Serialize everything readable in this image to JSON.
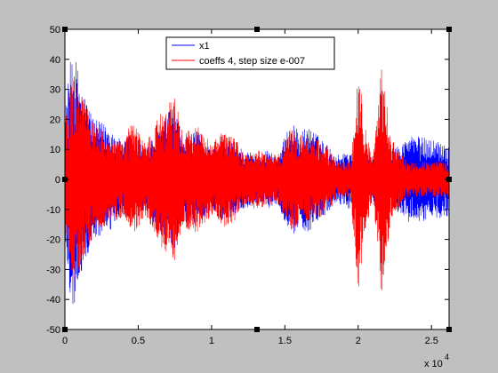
{
  "chart_data": {
    "type": "line",
    "title": "",
    "xlabel": "",
    "ylabel": "",
    "x_multiplier_label": "x 10",
    "x_multiplier_exponent": "4",
    "xlim": [
      0,
      26200
    ],
    "ylim": [
      -50,
      50
    ],
    "xticks": [
      0,
      5000,
      10000,
      15000,
      20000,
      25000
    ],
    "xtick_labels": [
      "0",
      "0.5",
      "1",
      "1.5",
      "2",
      "2.5"
    ],
    "yticks": [
      50,
      40,
      30,
      20,
      10,
      0,
      -10,
      -20,
      -30,
      -40,
      -50
    ],
    "ytick_labels": [
      "50",
      "40",
      "30",
      "20",
      "10",
      "0",
      "-10",
      "-20",
      "-30",
      "-40",
      "-50"
    ],
    "grid": false,
    "legend_position": "top-center",
    "series": [
      {
        "name": "x1",
        "color": "#0000ff",
        "envelope": [
          {
            "x": 0,
            "amp": 22
          },
          {
            "x": 500,
            "amp": 45
          },
          {
            "x": 1200,
            "amp": 30
          },
          {
            "x": 2000,
            "amp": 20
          },
          {
            "x": 3000,
            "amp": 18
          },
          {
            "x": 4000,
            "amp": 12
          },
          {
            "x": 4500,
            "amp": 16
          },
          {
            "x": 5500,
            "amp": 10
          },
          {
            "x": 6500,
            "amp": 18
          },
          {
            "x": 7500,
            "amp": 26
          },
          {
            "x": 8000,
            "amp": 14
          },
          {
            "x": 9000,
            "amp": 16
          },
          {
            "x": 10000,
            "amp": 10
          },
          {
            "x": 10800,
            "amp": 14
          },
          {
            "x": 11600,
            "amp": 12
          },
          {
            "x": 12200,
            "amp": 10
          },
          {
            "x": 13000,
            "amp": 8
          },
          {
            "x": 13800,
            "amp": 10
          },
          {
            "x": 14500,
            "amp": 8
          },
          {
            "x": 15500,
            "amp": 20
          },
          {
            "x": 16000,
            "amp": 15
          },
          {
            "x": 16500,
            "amp": 18
          },
          {
            "x": 17000,
            "amp": 16
          },
          {
            "x": 17800,
            "amp": 12
          },
          {
            "x": 18500,
            "amp": 8
          },
          {
            "x": 19500,
            "amp": 10
          },
          {
            "x": 20000,
            "amp": 10
          },
          {
            "x": 21000,
            "amp": 8
          },
          {
            "x": 21500,
            "amp": 14
          },
          {
            "x": 22200,
            "amp": 10
          },
          {
            "x": 23000,
            "amp": 12
          },
          {
            "x": 23500,
            "amp": 15
          },
          {
            "x": 24500,
            "amp": 14
          },
          {
            "x": 25500,
            "amp": 13
          },
          {
            "x": 26200,
            "amp": 12
          }
        ]
      },
      {
        "name": "coeffs 4, step size e-007",
        "color": "#ff0000",
        "envelope": [
          {
            "x": 0,
            "amp": 20
          },
          {
            "x": 500,
            "amp": 35
          },
          {
            "x": 1200,
            "amp": 28
          },
          {
            "x": 2000,
            "amp": 18
          },
          {
            "x": 3000,
            "amp": 15
          },
          {
            "x": 4000,
            "amp": 12
          },
          {
            "x": 4500,
            "amp": 20
          },
          {
            "x": 5500,
            "amp": 12
          },
          {
            "x": 6500,
            "amp": 22
          },
          {
            "x": 7500,
            "amp": 28
          },
          {
            "x": 8000,
            "amp": 16
          },
          {
            "x": 9000,
            "amp": 18
          },
          {
            "x": 10000,
            "amp": 12
          },
          {
            "x": 10800,
            "amp": 16
          },
          {
            "x": 11600,
            "amp": 14
          },
          {
            "x": 12200,
            "amp": 8
          },
          {
            "x": 13000,
            "amp": 10
          },
          {
            "x": 13800,
            "amp": 9
          },
          {
            "x": 14500,
            "amp": 8
          },
          {
            "x": 15500,
            "amp": 18
          },
          {
            "x": 16000,
            "amp": 15
          },
          {
            "x": 16500,
            "amp": 15
          },
          {
            "x": 17000,
            "amp": 14
          },
          {
            "x": 17800,
            "amp": 12
          },
          {
            "x": 18500,
            "amp": 6
          },
          {
            "x": 19500,
            "amp": 6
          },
          {
            "x": 20000,
            "amp": 40
          },
          {
            "x": 20400,
            "amp": 20
          },
          {
            "x": 21000,
            "amp": 6
          },
          {
            "x": 21600,
            "amp": 40
          },
          {
            "x": 22200,
            "amp": 15
          },
          {
            "x": 23000,
            "amp": 8
          },
          {
            "x": 23500,
            "amp": 6
          },
          {
            "x": 24500,
            "amp": 6
          },
          {
            "x": 25500,
            "amp": 6
          },
          {
            "x": 26200,
            "amp": 6
          }
        ]
      }
    ]
  }
}
